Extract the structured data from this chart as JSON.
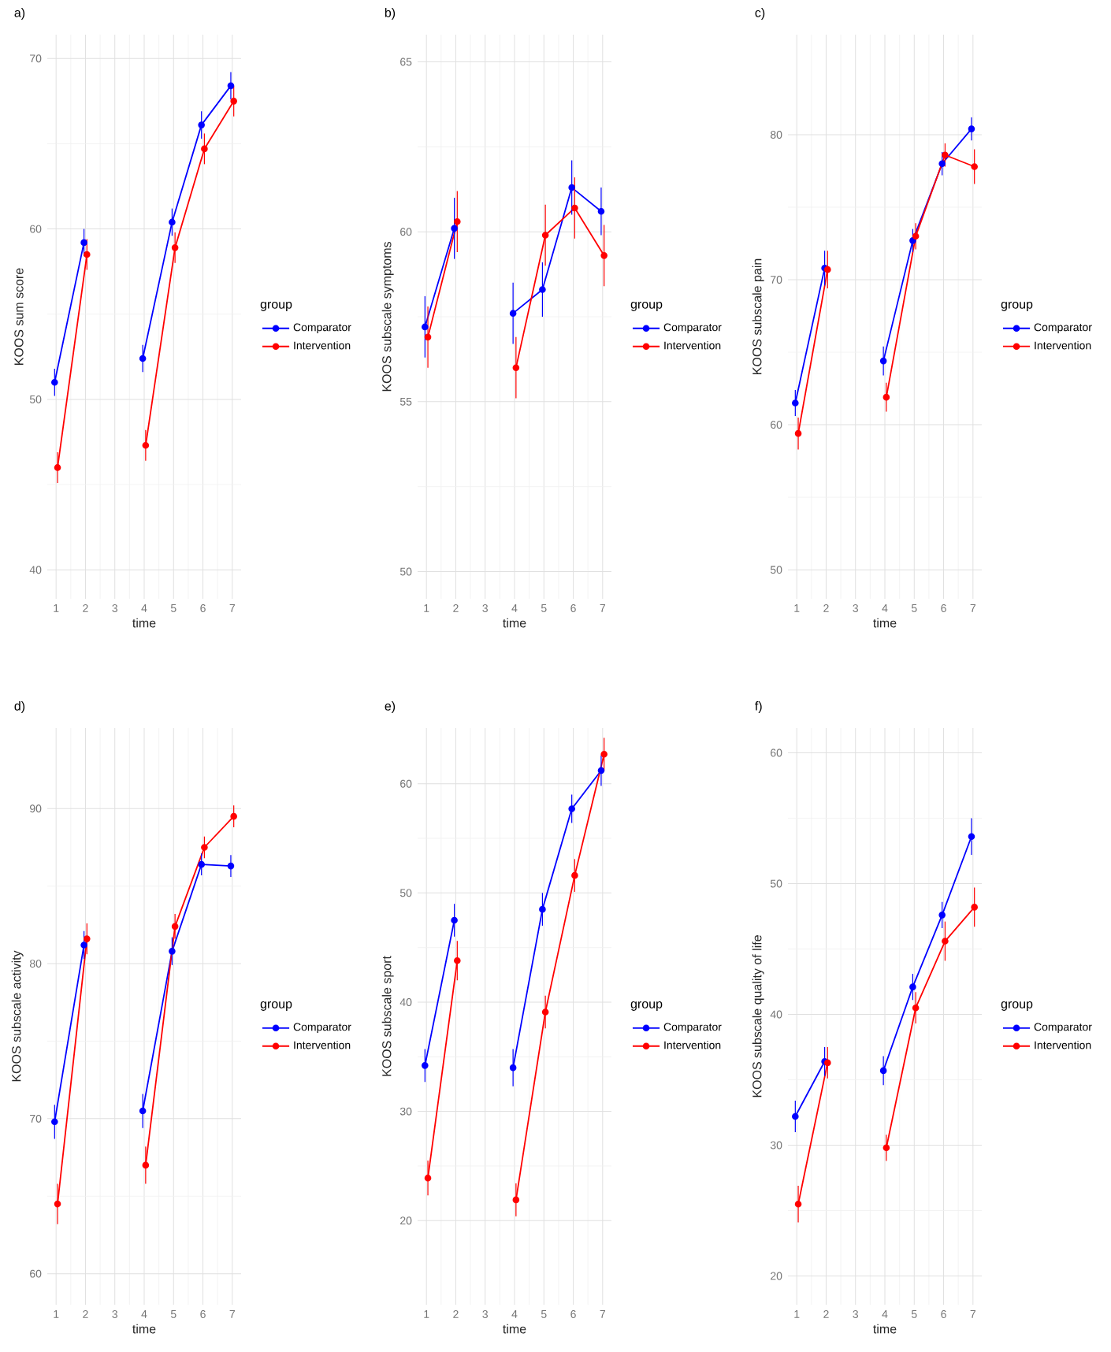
{
  "chart_data": [
    {
      "type": "line",
      "title": "a)",
      "xlabel": "time",
      "ylabel": "KOOS sum score",
      "legend_title": "group",
      "legend": "right",
      "grid": true,
      "marker": "circle",
      "xlim": [
        0.7,
        7.3
      ],
      "xticks": [
        1,
        2,
        3,
        4,
        5,
        6,
        7
      ],
      "ylim": [
        38.3,
        71.4
      ],
      "yticks": [
        40,
        50,
        60,
        70
      ],
      "series": [
        {
          "name": "Comparator",
          "color": "#0000ff",
          "x": [
            0.95,
            1.95,
            2.95,
            3.95,
            4.95,
            5.95,
            6.95
          ],
          "values": [
            51.0,
            59.2,
            null,
            52.4,
            60.4,
            66.1,
            68.4
          ],
          "errors": [
            0.8,
            0.8,
            null,
            0.8,
            0.8,
            0.8,
            0.8
          ]
        },
        {
          "name": "Intervention",
          "color": "#ff0000",
          "x": [
            1.05,
            2.05,
            3.05,
            4.05,
            5.05,
            6.05,
            7.05
          ],
          "values": [
            46.0,
            58.5,
            null,
            47.3,
            58.9,
            64.7,
            67.5
          ],
          "errors": [
            0.9,
            0.9,
            null,
            0.9,
            0.9,
            0.9,
            0.9
          ]
        }
      ]
    },
    {
      "type": "line",
      "title": "b)",
      "xlabel": "time",
      "ylabel": "KOOS subscale symptoms",
      "legend_title": "group",
      "legend": "right",
      "grid": true,
      "marker": "circle",
      "xlim": [
        0.7,
        7.3
      ],
      "xticks": [
        1,
        2,
        3,
        4,
        5,
        6,
        7
      ],
      "ylim": [
        49.2,
        65.8
      ],
      "yticks": [
        50,
        55,
        60,
        65
      ],
      "series": [
        {
          "name": "Comparator",
          "color": "#0000ff",
          "x": [
            0.95,
            1.95,
            2.95,
            3.95,
            4.95,
            5.95,
            6.95
          ],
          "values": [
            57.2,
            60.1,
            null,
            57.6,
            58.3,
            61.3,
            60.6
          ],
          "errors": [
            0.9,
            0.9,
            null,
            0.9,
            0.8,
            0.8,
            0.7
          ]
        },
        {
          "name": "Intervention",
          "color": "#ff0000",
          "x": [
            1.05,
            2.05,
            3.05,
            4.05,
            5.05,
            6.05,
            7.05
          ],
          "values": [
            56.9,
            60.3,
            null,
            56.0,
            59.9,
            60.7,
            59.3
          ],
          "errors": [
            0.9,
            0.9,
            null,
            0.9,
            0.9,
            0.9,
            0.9
          ]
        }
      ]
    },
    {
      "type": "line",
      "title": "c)",
      "xlabel": "time",
      "ylabel": "KOOS subscale pain",
      "legend_title": "group",
      "legend": "right",
      "grid": true,
      "marker": "circle",
      "xlim": [
        0.7,
        7.3
      ],
      "xticks": [
        1,
        2,
        3,
        4,
        5,
        6,
        7
      ],
      "ylim": [
        48.0,
        86.9
      ],
      "yticks": [
        50,
        60,
        70,
        80
      ],
      "series": [
        {
          "name": "Comparator",
          "color": "#0000ff",
          "x": [
            0.95,
            1.95,
            2.95,
            3.95,
            4.95,
            5.95,
            6.95
          ],
          "values": [
            61.5,
            70.8,
            null,
            64.4,
            72.7,
            78.0,
            80.4
          ],
          "errors": [
            0.9,
            1.2,
            null,
            1.0,
            0.8,
            0.8,
            0.8
          ]
        },
        {
          "name": "Intervention",
          "color": "#ff0000",
          "x": [
            1.05,
            2.05,
            3.05,
            4.05,
            5.05,
            6.05,
            7.05
          ],
          "values": [
            59.4,
            70.7,
            null,
            61.9,
            73.0,
            78.6,
            77.8
          ],
          "errors": [
            1.1,
            1.3,
            null,
            1.0,
            0.9,
            0.8,
            1.2
          ]
        }
      ]
    },
    {
      "type": "line",
      "title": "d)",
      "xlabel": "time",
      "ylabel": "KOOS subscale activity",
      "legend_title": "group",
      "legend": "right",
      "grid": true,
      "marker": "circle",
      "xlim": [
        0.7,
        7.3
      ],
      "xticks": [
        1,
        2,
        3,
        4,
        5,
        6,
        7
      ],
      "ylim": [
        58.0,
        95.2
      ],
      "yticks": [
        60,
        70,
        80,
        90
      ],
      "series": [
        {
          "name": "Comparator",
          "color": "#0000ff",
          "x": [
            0.95,
            1.95,
            2.95,
            3.95,
            4.95,
            5.95,
            6.95
          ],
          "values": [
            69.8,
            81.2,
            null,
            70.5,
            80.8,
            86.4,
            86.3
          ],
          "errors": [
            1.1,
            0.9,
            null,
            1.1,
            0.9,
            0.7,
            0.7
          ]
        },
        {
          "name": "Intervention",
          "color": "#ff0000",
          "x": [
            1.05,
            2.05,
            3.05,
            4.05,
            5.05,
            6.05,
            7.05
          ],
          "values": [
            64.5,
            81.6,
            null,
            67.0,
            82.4,
            87.5,
            89.5
          ],
          "errors": [
            1.3,
            1.0,
            null,
            1.2,
            0.8,
            0.7,
            0.7
          ]
        }
      ]
    },
    {
      "type": "line",
      "title": "e)",
      "xlabel": "time",
      "ylabel": "KOOS subscale sport",
      "legend_title": "group",
      "legend": "right",
      "grid": true,
      "marker": "circle",
      "xlim": [
        0.7,
        7.3
      ],
      "xticks": [
        1,
        2,
        3,
        4,
        5,
        6,
        7
      ],
      "ylim": [
        12.3,
        65.1
      ],
      "yticks": [
        20,
        30,
        40,
        50,
        60
      ],
      "series": [
        {
          "name": "Comparator",
          "color": "#0000ff",
          "x": [
            0.95,
            1.95,
            2.95,
            3.95,
            4.95,
            5.95,
            6.95
          ],
          "values": [
            34.2,
            47.5,
            null,
            34.0,
            48.5,
            57.7,
            61.2
          ],
          "errors": [
            1.5,
            1.5,
            null,
            1.7,
            1.5,
            1.3,
            1.4
          ]
        },
        {
          "name": "Intervention",
          "color": "#ff0000",
          "x": [
            1.05,
            2.05,
            3.05,
            4.05,
            5.05,
            6.05,
            7.05
          ],
          "values": [
            23.9,
            43.8,
            null,
            21.9,
            39.1,
            51.6,
            62.7
          ],
          "errors": [
            1.6,
            1.8,
            null,
            1.5,
            1.5,
            1.5,
            1.5
          ]
        }
      ]
    },
    {
      "type": "line",
      "title": "f)",
      "xlabel": "time",
      "ylabel": "KOOS subscale quality of life",
      "legend_title": "group",
      "legend": "right",
      "grid": true,
      "marker": "circle",
      "xlim": [
        0.7,
        7.3
      ],
      "xticks": [
        1,
        2,
        3,
        4,
        5,
        6,
        7
      ],
      "ylim": [
        17.8,
        61.9
      ],
      "yticks": [
        20,
        30,
        40,
        50,
        60
      ],
      "series": [
        {
          "name": "Comparator",
          "color": "#0000ff",
          "x": [
            0.95,
            1.95,
            2.95,
            3.95,
            4.95,
            5.95,
            6.95
          ],
          "values": [
            32.2,
            36.4,
            null,
            35.7,
            42.1,
            47.6,
            53.6
          ],
          "errors": [
            1.2,
            1.1,
            null,
            1.1,
            1.0,
            1.0,
            1.4
          ]
        },
        {
          "name": "Intervention",
          "color": "#ff0000",
          "x": [
            1.05,
            2.05,
            3.05,
            4.05,
            5.05,
            6.05,
            7.05
          ],
          "values": [
            25.5,
            36.3,
            null,
            29.8,
            40.5,
            45.6,
            48.2
          ],
          "errors": [
            1.4,
            1.2,
            null,
            1.0,
            1.2,
            1.5,
            1.5
          ]
        }
      ]
    }
  ]
}
